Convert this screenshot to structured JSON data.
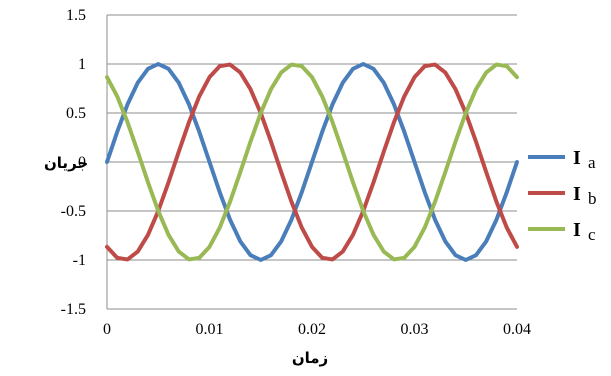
{
  "chart_data": {
    "type": "line",
    "xlabel": "زمان",
    "ylabel": "جریان",
    "xlim": [
      0,
      0.04
    ],
    "ylim": [
      -1.5,
      1.5
    ],
    "x_ticks": [
      "0",
      "0.01",
      "0.02",
      "0.03",
      "0.04"
    ],
    "y_ticks": [
      "1.5",
      "1",
      "0.5",
      "0",
      "-0.5",
      "-1",
      "-1.5"
    ],
    "grid": true,
    "legend_position": "right",
    "frequency_hz": 50,
    "series": [
      {
        "name": "Ia",
        "main": "I",
        "sub": "a",
        "color": "#4a7ebb",
        "phase_deg": 0
      },
      {
        "name": "Ib",
        "main": "I",
        "sub": "b",
        "color": "#be4b48",
        "phase_deg": -120
      },
      {
        "name": "Ic",
        "main": "I",
        "sub": "c",
        "color": "#98b954",
        "phase_deg": 120
      }
    ]
  }
}
